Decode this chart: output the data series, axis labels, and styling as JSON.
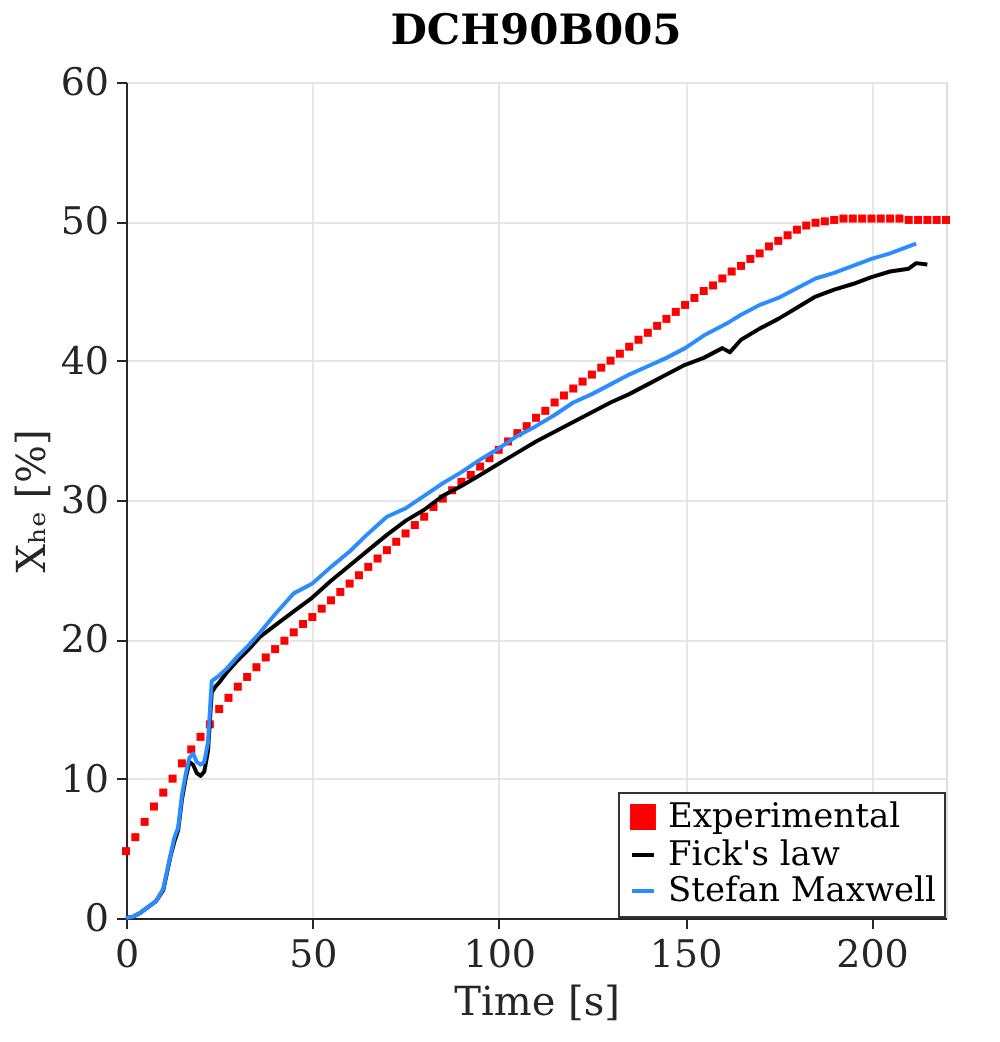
{
  "chart_data": {
    "type": "line",
    "title": "DCH90B005",
    "xlabel": "Time [s]",
    "ylabel": "Xₕₑ [%]",
    "xlim": [
      0,
      220
    ],
    "xticks": [
      0,
      50,
      100,
      150,
      200
    ],
    "ylim": [
      0,
      60
    ],
    "yticks": [
      0,
      10,
      20,
      30,
      40,
      50,
      60
    ],
    "grid": true,
    "legend": "bottom right",
    "series": [
      {
        "name": "Experimental",
        "type": "scatter",
        "marker": "square",
        "color": "#ff0000",
        "x": [
          0,
          2.5,
          5,
          7.5,
          10,
          12.5,
          15,
          17.5,
          20,
          22.5,
          25,
          27.5,
          30,
          32.5,
          35,
          37.5,
          40,
          42.5,
          45,
          47.5,
          50,
          52.5,
          55,
          57.5,
          60,
          62.5,
          65,
          67.5,
          70,
          72.5,
          75,
          77.5,
          80,
          82.5,
          85,
          87.5,
          90,
          92.5,
          95,
          97.5,
          100,
          102.5,
          105,
          107.5,
          110,
          112.5,
          115,
          117.5,
          120,
          122.5,
          125,
          127.5,
          130,
          132.5,
          135,
          137.5,
          140,
          142.5,
          145,
          147.5,
          150,
          152.5,
          155,
          157.5,
          160,
          162.5,
          165,
          167.5,
          170,
          172.5,
          175,
          177.5,
          180,
          182.5,
          185,
          187.5,
          190,
          192.5,
          195,
          197.5,
          200,
          202.5,
          205,
          207.5,
          210,
          212.5,
          215,
          217.5,
          220
        ],
        "values": [
          4.8,
          5.8,
          6.9,
          8.0,
          9.0,
          10.0,
          11.1,
          12.1,
          13.0,
          13.9,
          15.0,
          15.8,
          16.6,
          17.3,
          18.0,
          18.7,
          19.3,
          19.9,
          20.5,
          21.1,
          21.6,
          22.2,
          22.8,
          23.4,
          24.0,
          24.6,
          25.2,
          25.8,
          26.4,
          27.0,
          27.6,
          28.2,
          28.8,
          29.5,
          30.1,
          30.7,
          31.3,
          31.8,
          32.4,
          33.0,
          33.6,
          34.2,
          34.8,
          35.3,
          35.9,
          36.4,
          37.0,
          37.5,
          38.0,
          38.5,
          39.0,
          39.5,
          40.0,
          40.5,
          41.0,
          41.5,
          42.0,
          42.5,
          43.0,
          43.5,
          44.0,
          44.5,
          45.0,
          45.4,
          45.9,
          46.4,
          46.8,
          47.3,
          47.7,
          48.2,
          48.6,
          49.0,
          49.4,
          49.7,
          49.9,
          50.0,
          50.1,
          50.2,
          50.2,
          50.2,
          50.2,
          50.2,
          50.2,
          50.2,
          50.1,
          50.1,
          50.1,
          50.1,
          50.1
        ]
      },
      {
        "name": "Fick's law",
        "line_style": "solid",
        "color": "#000000",
        "x": [
          0,
          2,
          4,
          6,
          8,
          10,
          12,
          13,
          14,
          15,
          16,
          17,
          18,
          19,
          20,
          21,
          22,
          23,
          24,
          25,
          27,
          30,
          33,
          36,
          40,
          45,
          50,
          55,
          60,
          65,
          70,
          75,
          80,
          85,
          90,
          95,
          100,
          105,
          110,
          115,
          120,
          125,
          130,
          135,
          140,
          145,
          150,
          155,
          160,
          162,
          165,
          170,
          175,
          180,
          185,
          190,
          195,
          200,
          205,
          210,
          212,
          215
        ],
        "values": [
          0,
          0.1,
          0.4,
          0.8,
          1.2,
          2.0,
          4.5,
          5.5,
          6.3,
          8.5,
          10.0,
          11.2,
          11.0,
          10.4,
          10.2,
          10.5,
          12.0,
          16.2,
          16.6,
          16.9,
          17.6,
          18.5,
          19.3,
          20.2,
          21.0,
          22.0,
          23.0,
          24.2,
          25.3,
          26.4,
          27.5,
          28.5,
          29.3,
          30.3,
          31.0,
          31.8,
          32.6,
          33.4,
          34.2,
          34.9,
          35.6,
          36.3,
          37.0,
          37.6,
          38.3,
          39.0,
          39.7,
          40.2,
          40.9,
          40.6,
          41.5,
          42.3,
          43.0,
          43.8,
          44.6,
          45.1,
          45.5,
          46.0,
          46.4,
          46.6,
          47.0,
          46.9
        ]
      },
      {
        "name": "Stefan Maxwell",
        "line_style": "solid",
        "color": "#2b8cff",
        "x": [
          0,
          2,
          4,
          6,
          8,
          10,
          12,
          13,
          14,
          15,
          16,
          17,
          18,
          19,
          20,
          21,
          22,
          23,
          24,
          25,
          27,
          30,
          33,
          36,
          40,
          45,
          50,
          55,
          60,
          65,
          70,
          75,
          80,
          85,
          90,
          95,
          100,
          105,
          110,
          115,
          120,
          125,
          130,
          135,
          140,
          145,
          150,
          155,
          160,
          162,
          165,
          170,
          175,
          180,
          185,
          190,
          195,
          200,
          205,
          210,
          212
        ],
        "values": [
          0,
          0.1,
          0.4,
          0.8,
          1.2,
          2.1,
          4.6,
          5.8,
          6.5,
          8.8,
          10.3,
          11.5,
          11.8,
          11.2,
          11.0,
          11.2,
          12.6,
          17.0,
          17.2,
          17.4,
          17.9,
          18.8,
          19.6,
          20.5,
          21.8,
          23.3,
          24.0,
          25.2,
          26.3,
          27.6,
          28.8,
          29.4,
          30.3,
          31.2,
          32.0,
          32.9,
          33.7,
          34.6,
          35.3,
          36.1,
          37.0,
          37.6,
          38.3,
          39.0,
          39.6,
          40.2,
          40.9,
          41.8,
          42.5,
          42.8,
          43.3,
          44.0,
          44.5,
          45.2,
          45.9,
          46.3,
          46.8,
          47.3,
          47.7,
          48.2,
          48.4
        ]
      }
    ]
  }
}
